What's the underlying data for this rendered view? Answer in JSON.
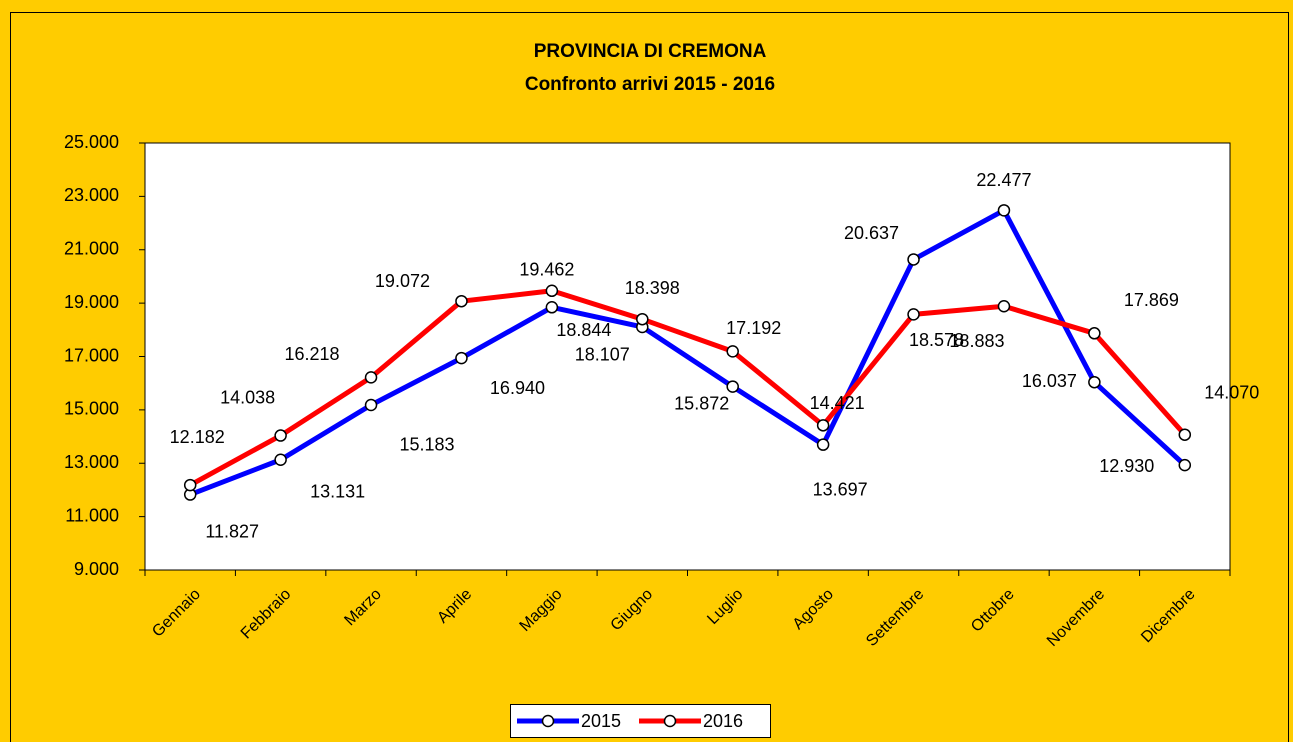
{
  "chart_data": {
    "type": "line",
    "title": "PROVINCIA DI CREMONA",
    "subtitle": "Confronto arrivi 2015 - 2016",
    "categories": [
      "Gennaio",
      "Febbraio",
      "Marzo",
      "Aprile",
      "Maggio",
      "Giugno",
      "Luglio",
      "Agosto",
      "Settembre",
      "Ottobre",
      "Novembre",
      "Dicembre"
    ],
    "series": [
      {
        "name": "2015",
        "color": "#0000ff",
        "values": [
          11827,
          13131,
          15183,
          16940,
          18844,
          18107,
          15872,
          13697,
          20637,
          22477,
          16037,
          12930
        ],
        "value_labels": [
          "11.827",
          "13.131",
          "15.183",
          "16.940",
          "18.844",
          "18.107",
          "15.872",
          "13.697",
          "20.637",
          "22.477",
          "16.037",
          "12.930"
        ]
      },
      {
        "name": "2016",
        "color": "#ff0000",
        "values": [
          12182,
          14038,
          16218,
          19072,
          19462,
          18398,
          17192,
          14421,
          18578,
          18883,
          17869,
          14070
        ],
        "value_labels": [
          "12.182",
          "14.038",
          "16.218",
          "19.072",
          "19.462",
          "18.398",
          "17.192",
          "14.421",
          "18.578",
          "18.883",
          "17.869",
          "14.070"
        ]
      }
    ],
    "ylim": [
      9000,
      25000
    ],
    "yticks": [
      {
        "value": 9000,
        "label": "9.000"
      },
      {
        "value": 11000,
        "label": "11.000"
      },
      {
        "value": 13000,
        "label": "13.000"
      },
      {
        "value": 15000,
        "label": "15.000"
      },
      {
        "value": 17000,
        "label": "17.000"
      },
      {
        "value": 19000,
        "label": "19.000"
      },
      {
        "value": 21000,
        "label": "21.000"
      },
      {
        "value": 23000,
        "label": "23.000"
      },
      {
        "value": 25000,
        "label": "25.000"
      }
    ],
    "grid": false,
    "legend": "bottom"
  }
}
